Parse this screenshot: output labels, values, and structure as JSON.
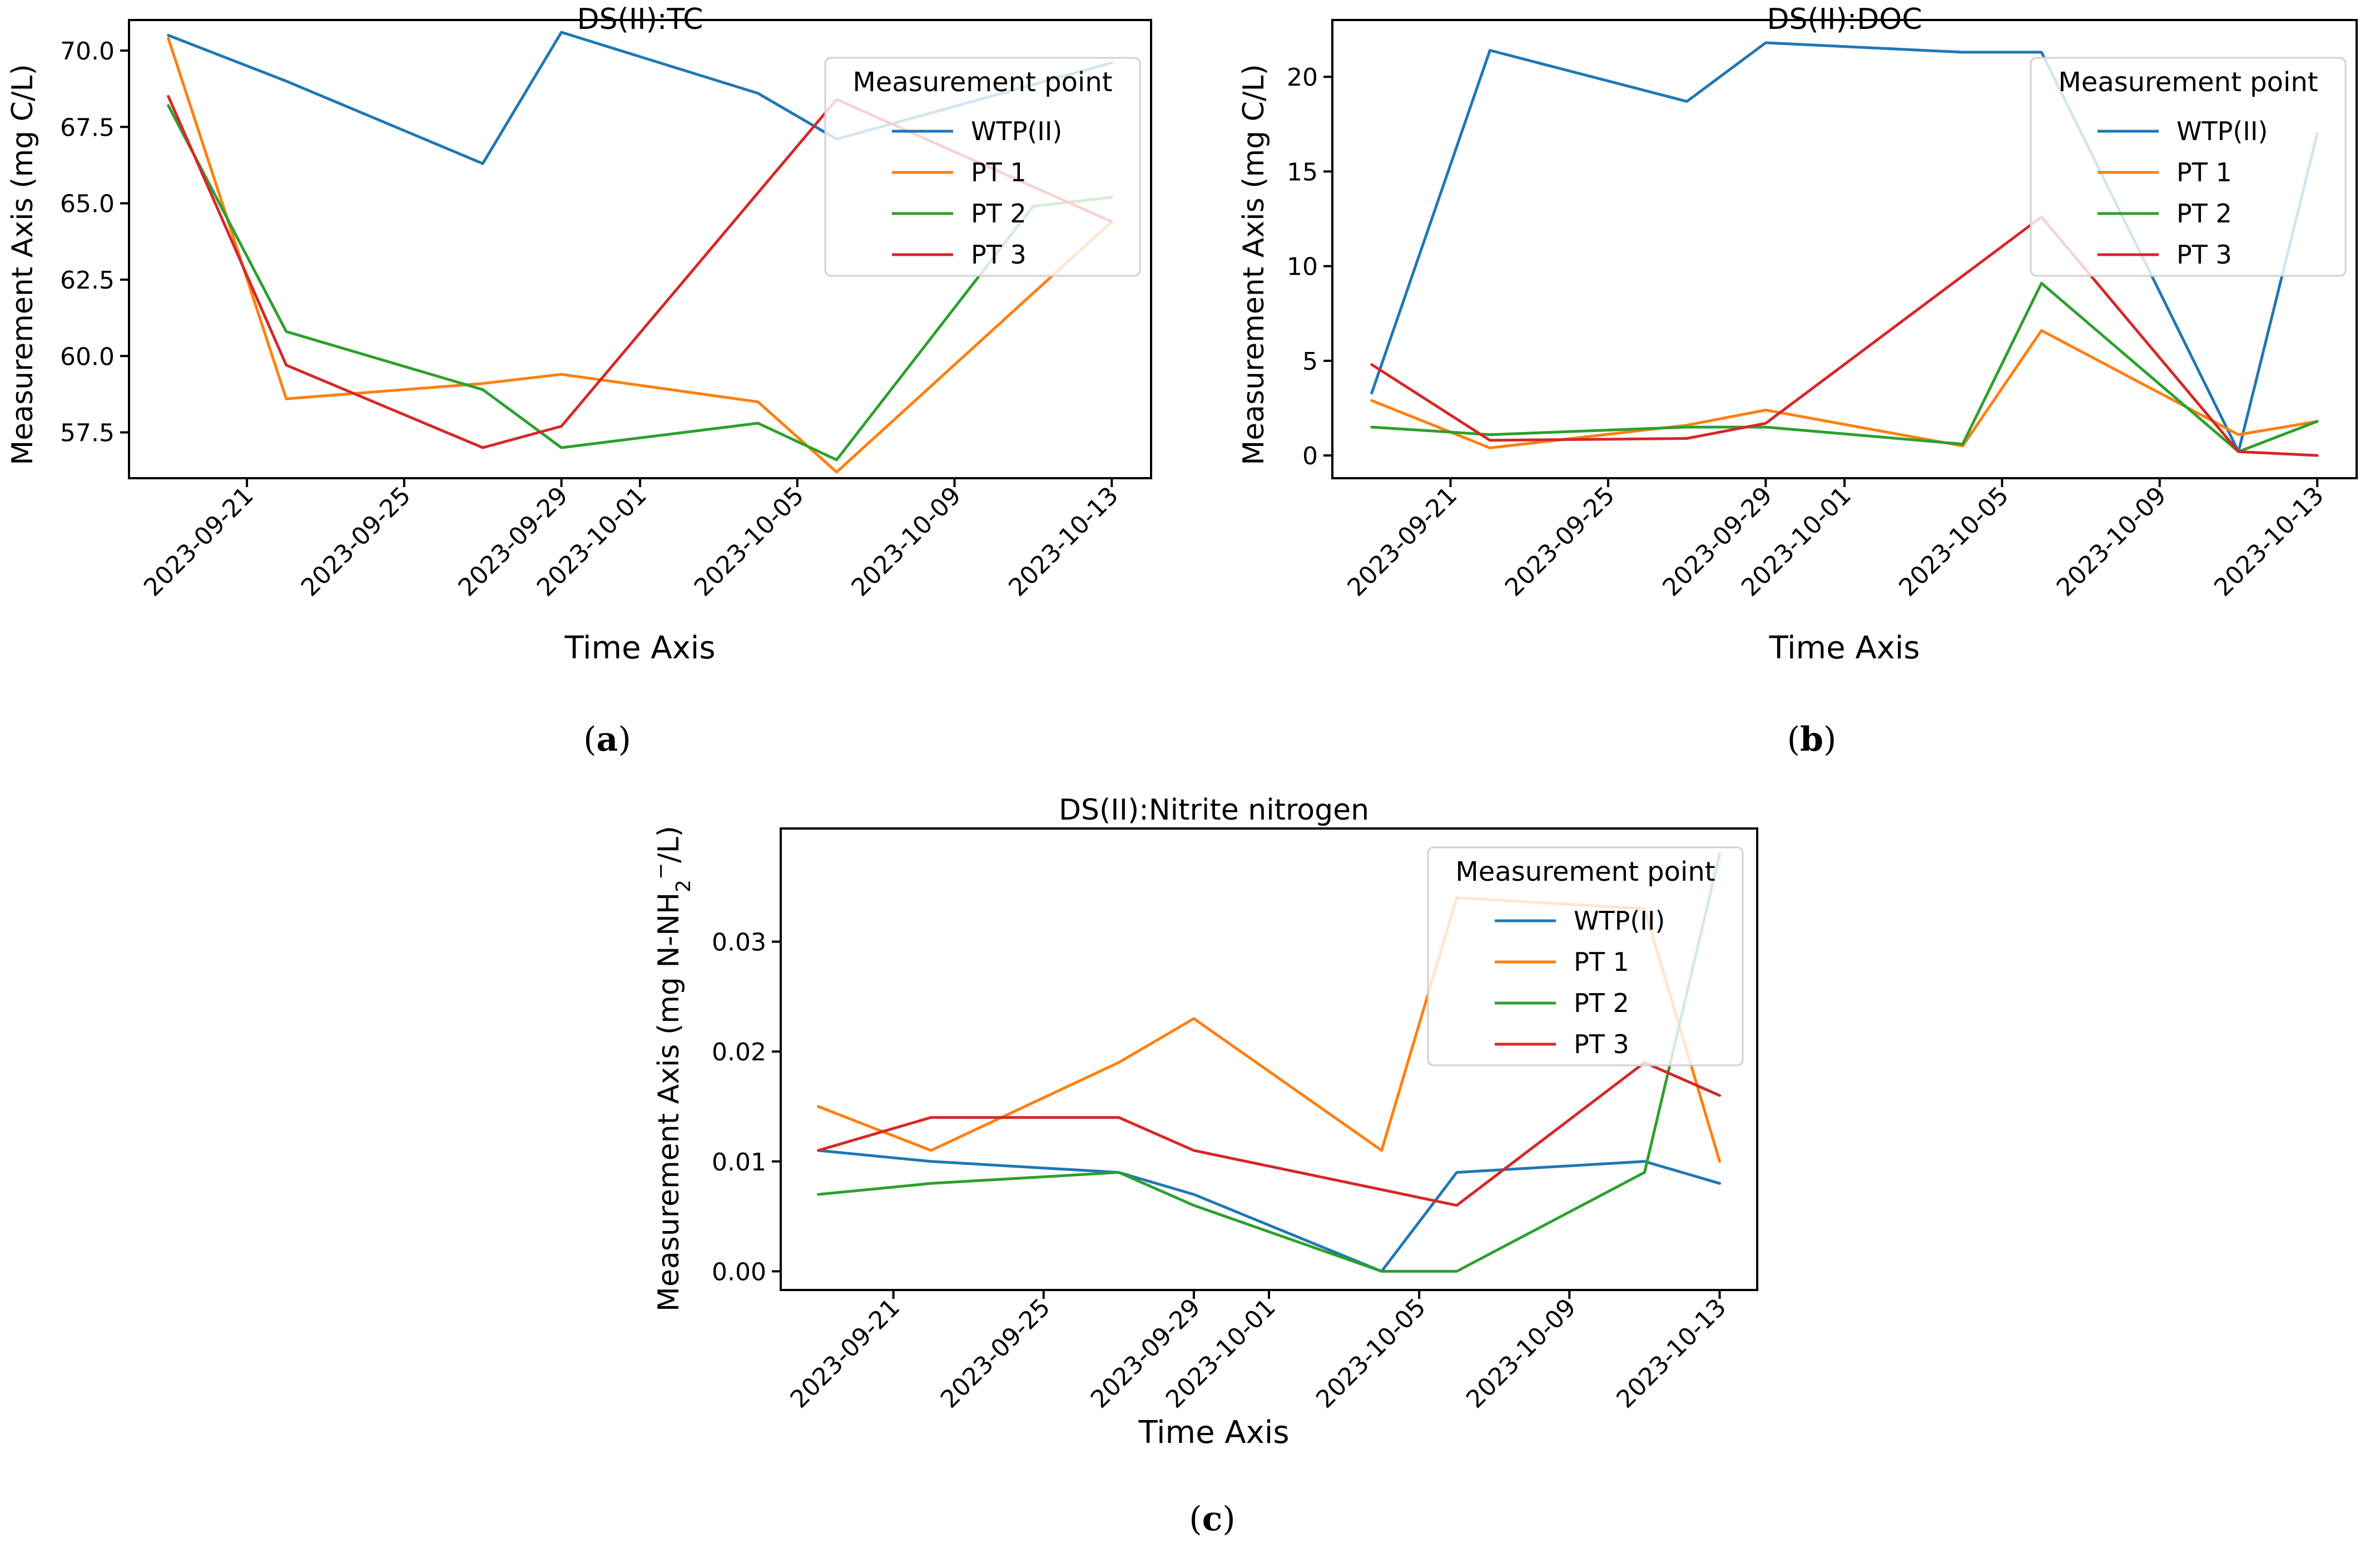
{
  "colors": {
    "WTP(II)": "#1f77b4",
    "PT 1": "#ff7f0e",
    "PT 2": "#2ca02c",
    "PT 3": "#d62728",
    "axes": "#000000"
  },
  "chart_data": [
    {
      "type": "line",
      "title": "DS(II):TC",
      "panel_label": "a",
      "xlabel": "Time Axis",
      "ylabel": "Measurement Axis (mg C/L)",
      "x_ticks": [
        "2023-09-21",
        "2023-09-25",
        "2023-09-29",
        "2023-10-01",
        "2023-10-05",
        "2023-10-09",
        "2023-10-13"
      ],
      "y_ticks": [
        "57.5",
        "60.0",
        "62.5",
        "65.0",
        "67.5",
        "70.0"
      ],
      "xlim": [
        "2023-09-18",
        "2023-10-14"
      ],
      "ylim": [
        56.0,
        71.0
      ],
      "grid": false,
      "legend": {
        "title": "Measurement point",
        "position": "top-right"
      },
      "series": [
        {
          "name": "WTP(II)",
          "x": [
            "2023-09-19",
            "2023-09-22",
            "2023-09-27",
            "2023-09-29",
            "2023-10-04",
            "2023-10-06",
            "2023-10-13"
          ],
          "y": [
            70.5,
            69.0,
            66.3,
            70.6,
            68.6,
            67.1,
            69.6
          ]
        },
        {
          "name": "PT 1",
          "x": [
            "2023-09-19",
            "2023-09-22",
            "2023-09-27",
            "2023-09-29",
            "2023-10-04",
            "2023-10-06",
            "2023-10-13"
          ],
          "y": [
            70.4,
            58.6,
            59.1,
            59.4,
            58.5,
            56.2,
            64.4
          ]
        },
        {
          "name": "PT 2",
          "x": [
            "2023-09-19",
            "2023-09-22",
            "2023-09-27",
            "2023-09-29",
            "2023-10-04",
            "2023-10-06",
            "2023-10-11",
            "2023-10-13"
          ],
          "y": [
            68.2,
            60.8,
            58.9,
            57.0,
            57.8,
            56.6,
            64.9,
            65.2
          ]
        },
        {
          "name": "PT 3",
          "x": [
            "2023-09-19",
            "2023-09-22",
            "2023-09-27",
            "2023-09-29",
            "2023-10-06",
            "2023-10-13"
          ],
          "y": [
            68.5,
            59.7,
            57.0,
            57.7,
            68.4,
            64.4
          ]
        }
      ]
    },
    {
      "type": "line",
      "title": "DS(II):DOC",
      "panel_label": "b",
      "xlabel": "Time Axis",
      "ylabel": "Measurement Axis (mg C/L)",
      "x_ticks": [
        "2023-09-21",
        "2023-09-25",
        "2023-09-29",
        "2023-10-01",
        "2023-10-05",
        "2023-10-09",
        "2023-10-13"
      ],
      "y_ticks": [
        "0",
        "5",
        "10",
        "15",
        "20"
      ],
      "xlim": [
        "2023-09-18",
        "2023-10-14"
      ],
      "ylim": [
        -1.2,
        23.0
      ],
      "grid": false,
      "legend": {
        "title": "Measurement point",
        "position": "top-right"
      },
      "series": [
        {
          "name": "WTP(II)",
          "x": [
            "2023-09-19",
            "2023-09-22",
            "2023-09-27",
            "2023-09-29",
            "2023-10-04",
            "2023-10-06",
            "2023-10-11",
            "2023-10-13"
          ],
          "y": [
            3.3,
            21.4,
            18.7,
            21.8,
            21.3,
            21.3,
            0.2,
            17.0
          ]
        },
        {
          "name": "PT 1",
          "x": [
            "2023-09-19",
            "2023-09-22",
            "2023-09-27",
            "2023-09-29",
            "2023-10-04",
            "2023-10-06",
            "2023-10-11",
            "2023-10-13"
          ],
          "y": [
            2.9,
            0.4,
            1.6,
            2.4,
            0.5,
            6.6,
            1.1,
            1.8
          ]
        },
        {
          "name": "PT 2",
          "x": [
            "2023-09-19",
            "2023-09-22",
            "2023-09-27",
            "2023-09-29",
            "2023-10-04",
            "2023-10-06",
            "2023-10-11",
            "2023-10-13"
          ],
          "y": [
            1.5,
            1.1,
            1.5,
            1.5,
            0.6,
            9.1,
            0.2,
            1.8
          ]
        },
        {
          "name": "PT 3",
          "x": [
            "2023-09-19",
            "2023-09-22",
            "2023-09-27",
            "2023-09-29",
            "2023-10-06",
            "2023-10-11",
            "2023-10-13"
          ],
          "y": [
            4.8,
            0.8,
            0.9,
            1.7,
            12.6,
            0.2,
            0.0
          ]
        }
      ]
    },
    {
      "type": "line",
      "title": "DS(II):Nitrite nitrogen",
      "panel_label": "c",
      "xlabel": "Time Axis",
      "ylabel_main": "Measurement Axis (mg N-NH",
      "ylabel_sub": "2",
      "ylabel_sup": "−",
      "ylabel_end": "/L)",
      "x_ticks": [
        "2023-09-21",
        "2023-09-25",
        "2023-09-29",
        "2023-10-01",
        "2023-10-05",
        "2023-10-09",
        "2023-10-13"
      ],
      "y_ticks": [
        "0.00",
        "0.01",
        "0.02",
        "0.03"
      ],
      "xlim": [
        "2023-09-18",
        "2023-10-14"
      ],
      "ylim": [
        -0.0017,
        0.0403
      ],
      "grid": false,
      "legend": {
        "title": "Measurement point",
        "position": "top-right"
      },
      "series": [
        {
          "name": "WTP(II)",
          "x": [
            "2023-09-19",
            "2023-09-22",
            "2023-09-27",
            "2023-09-29",
            "2023-10-04",
            "2023-10-06",
            "2023-10-11",
            "2023-10-13"
          ],
          "y": [
            0.011,
            0.01,
            0.009,
            0.007,
            0.0,
            0.009,
            0.01,
            0.008
          ]
        },
        {
          "name": "PT 1",
          "x": [
            "2023-09-19",
            "2023-09-22",
            "2023-09-27",
            "2023-09-29",
            "2023-10-04",
            "2023-10-06",
            "2023-10-11",
            "2023-10-13"
          ],
          "y": [
            0.015,
            0.011,
            0.019,
            0.023,
            0.011,
            0.034,
            0.033,
            0.01
          ]
        },
        {
          "name": "PT 2",
          "x": [
            "2023-09-19",
            "2023-09-22",
            "2023-09-27",
            "2023-09-29",
            "2023-10-04",
            "2023-10-06",
            "2023-10-11",
            "2023-10-13"
          ],
          "y": [
            0.007,
            0.008,
            0.009,
            0.006,
            0.0,
            0.0,
            0.009,
            0.038
          ]
        },
        {
          "name": "PT 3",
          "x": [
            "2023-09-19",
            "2023-09-22",
            "2023-09-27",
            "2023-09-29",
            "2023-10-06",
            "2023-10-11",
            "2023-10-13"
          ],
          "y": [
            0.011,
            0.014,
            0.014,
            0.011,
            0.006,
            0.019,
            0.016
          ]
        }
      ]
    }
  ]
}
